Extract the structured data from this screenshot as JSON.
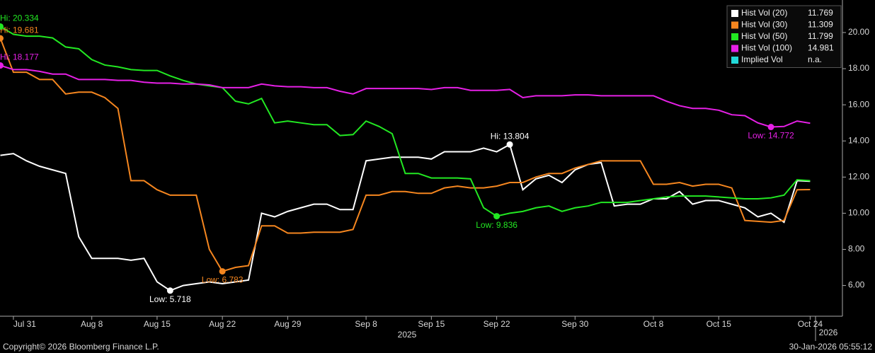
{
  "chart_data": {
    "type": "line",
    "categories": [
      null,
      "Jul 31",
      null,
      null,
      null,
      null,
      null,
      "Aug 8",
      null,
      null,
      null,
      null,
      "Aug 15",
      null,
      null,
      null,
      null,
      "Aug 22",
      null,
      null,
      null,
      null,
      "Aug 29",
      null,
      null,
      null,
      null,
      null,
      "Sep 8",
      null,
      null,
      null,
      null,
      "Sep 15",
      null,
      null,
      null,
      null,
      "Sep 22",
      null,
      null,
      null,
      null,
      null,
      "Sep 30",
      null,
      null,
      null,
      null,
      null,
      "Oct 8",
      null,
      null,
      null,
      null,
      "Oct 15",
      null,
      null,
      null,
      null,
      null,
      null,
      "Oct 24"
    ],
    "year_labels": [
      "2025",
      "2026"
    ],
    "series": [
      {
        "name": "Hist Vol (20)",
        "color": "#ffffff",
        "legend_value": "11.769",
        "hi_label": "Hi: 13.804",
        "low_label": "Low: 5.718",
        "values": [
          13.2,
          13.3,
          12.9,
          12.6,
          12.4,
          12.2,
          8.7,
          7.5,
          7.5,
          7.5,
          7.4,
          7.5,
          6.2,
          5.718,
          6.0,
          6.1,
          6.2,
          6.1,
          6.2,
          6.3,
          10.0,
          9.8,
          10.1,
          10.3,
          10.5,
          10.5,
          10.2,
          10.2,
          12.9,
          13.0,
          13.1,
          13.1,
          13.1,
          13.0,
          13.4,
          13.4,
          13.4,
          13.6,
          13.4,
          13.804,
          11.3,
          11.9,
          12.1,
          11.7,
          12.4,
          12.7,
          12.8,
          10.4,
          10.5,
          10.5,
          10.8,
          10.8,
          11.2,
          10.5,
          10.7,
          10.7,
          10.5,
          10.3,
          9.8,
          10.0,
          9.5,
          11.8,
          11.769
        ]
      },
      {
        "name": "Hist Vol (30)",
        "color": "#f5861f",
        "legend_value": "11.309",
        "hi_label": "Hi: 19.681",
        "low_label": "Low: 6.783",
        "values": [
          19.681,
          17.8,
          17.8,
          17.4,
          17.4,
          16.6,
          16.7,
          16.7,
          16.4,
          15.8,
          11.8,
          11.8,
          11.3,
          11.0,
          11.0,
          11.0,
          8.0,
          6.783,
          7.0,
          7.1,
          9.3,
          9.3,
          8.9,
          8.9,
          8.95,
          8.95,
          8.95,
          9.1,
          11.0,
          11.0,
          11.2,
          11.2,
          11.1,
          11.1,
          11.4,
          11.5,
          11.4,
          11.4,
          11.5,
          11.7,
          11.7,
          12.0,
          12.2,
          12.2,
          12.5,
          12.7,
          12.9,
          12.9,
          12.9,
          12.9,
          11.6,
          11.6,
          11.7,
          11.5,
          11.6,
          11.6,
          11.4,
          9.6,
          9.55,
          9.5,
          9.6,
          11.3,
          11.309
        ]
      },
      {
        "name": "Hist Vol (50)",
        "color": "#22e822",
        "legend_value": "11.799",
        "hi_label": "Hi: 20.334",
        "low_label": "Low: 9.836",
        "values": [
          20.334,
          19.9,
          19.8,
          19.8,
          19.7,
          19.2,
          19.1,
          18.5,
          18.2,
          18.1,
          17.95,
          17.9,
          17.9,
          17.6,
          17.35,
          17.15,
          17.05,
          16.95,
          16.2,
          16.05,
          16.35,
          15.0,
          15.1,
          15.0,
          14.9,
          14.9,
          14.3,
          14.35,
          15.1,
          14.8,
          14.4,
          12.2,
          12.2,
          11.95,
          11.95,
          11.95,
          11.9,
          10.3,
          9.836,
          10.0,
          10.1,
          10.3,
          10.4,
          10.1,
          10.3,
          10.4,
          10.6,
          10.6,
          10.6,
          10.7,
          10.8,
          10.9,
          10.95,
          10.95,
          10.95,
          10.9,
          10.85,
          10.8,
          10.8,
          10.85,
          11.0,
          11.85,
          11.799
        ]
      },
      {
        "name": "Hist Vol (100)",
        "color": "#e620e6",
        "legend_value": "14.981",
        "hi_label": "Hi: 18.177",
        "low_label": "Low: 14.772",
        "values": [
          18.177,
          17.95,
          17.95,
          17.85,
          17.7,
          17.7,
          17.4,
          17.4,
          17.4,
          17.35,
          17.35,
          17.25,
          17.2,
          17.2,
          17.15,
          17.15,
          17.1,
          16.95,
          16.95,
          16.95,
          17.15,
          17.05,
          17.0,
          17.0,
          16.95,
          16.95,
          16.75,
          16.6,
          16.9,
          16.9,
          16.9,
          16.9,
          16.9,
          16.85,
          16.95,
          16.95,
          16.8,
          16.8,
          16.8,
          16.85,
          16.4,
          16.5,
          16.5,
          16.5,
          16.55,
          16.55,
          16.5,
          16.5,
          16.5,
          16.5,
          16.5,
          16.2,
          15.95,
          15.8,
          15.8,
          15.7,
          15.45,
          15.4,
          15.0,
          14.772,
          14.8,
          15.1,
          14.981
        ]
      }
    ],
    "legend_extra": [
      {
        "name": "Implied Vol",
        "color": "#22d8d8",
        "legend_value": "n.a."
      }
    ],
    "legend_position": "top-right",
    "ylim": [
      4.3,
      21.8
    ],
    "yticks": [
      {
        "value": 6,
        "label": "6.00"
      },
      {
        "value": 8,
        "label": "8.00"
      },
      {
        "value": 10,
        "label": "10.00"
      },
      {
        "value": 12,
        "label": "12.00"
      },
      {
        "value": 14,
        "label": "14.00"
      },
      {
        "value": 16,
        "label": "16.00"
      },
      {
        "value": 18,
        "label": "18.00"
      },
      {
        "value": 20,
        "label": "20.00"
      }
    ],
    "y_axis_side": "right",
    "grid": false,
    "footer_left": "Copyright© 2026 Bloomberg Finance L.P.",
    "footer_right": "30-Jan-2026 05:55:12"
  }
}
